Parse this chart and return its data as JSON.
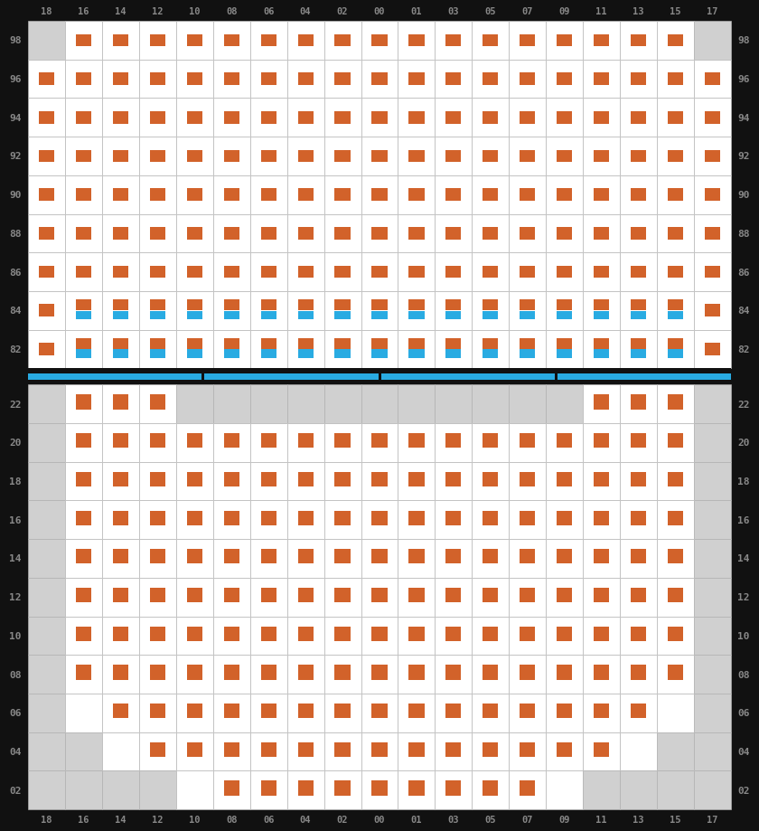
{
  "col_labels": [
    "18",
    "16",
    "14",
    "12",
    "10",
    "08",
    "06",
    "04",
    "02",
    "00",
    "01",
    "03",
    "05",
    "07",
    "09",
    "11",
    "13",
    "15",
    "17"
  ],
  "top_rows": [
    "98",
    "96",
    "94",
    "92",
    "90",
    "88",
    "86",
    "84",
    "82"
  ],
  "bot_rows": [
    "22",
    "20",
    "18",
    "16",
    "14",
    "12",
    "10",
    "08",
    "06",
    "04",
    "02"
  ],
  "orange": "#d2622a",
  "blue": "#29abe2",
  "bg_dark": "#111111",
  "bg_white": "#ffffff",
  "bg_gray": "#d0d0d0",
  "bg_light_gray": "#e8e8e8",
  "separator_blue": "#29abe2",
  "label_color": "#888888",
  "top_orange": {
    "98": [
      1,
      2,
      3,
      4,
      5,
      6,
      7,
      8,
      9,
      10,
      11,
      12,
      13,
      14,
      15,
      16,
      17
    ],
    "96": [
      0,
      1,
      2,
      3,
      4,
      5,
      6,
      7,
      8,
      9,
      10,
      11,
      12,
      13,
      14,
      15,
      16,
      17,
      18
    ],
    "94": [
      0,
      1,
      2,
      3,
      4,
      5,
      6,
      7,
      8,
      9,
      10,
      11,
      12,
      13,
      14,
      15,
      16,
      17,
      18
    ],
    "92": [
      0,
      1,
      2,
      3,
      4,
      5,
      6,
      7,
      8,
      9,
      10,
      11,
      12,
      13,
      14,
      15,
      16,
      17,
      18
    ],
    "90": [
      0,
      1,
      2,
      3,
      4,
      5,
      6,
      7,
      8,
      9,
      10,
      11,
      12,
      13,
      14,
      15,
      16,
      17,
      18
    ],
    "88": [
      0,
      1,
      2,
      3,
      4,
      5,
      6,
      7,
      8,
      9,
      10,
      11,
      12,
      13,
      14,
      15,
      16,
      17,
      18
    ],
    "86": [
      0,
      1,
      2,
      3,
      4,
      5,
      6,
      7,
      8,
      9,
      10,
      11,
      12,
      13,
      14,
      15,
      16,
      17,
      18
    ],
    "84": [
      0,
      1,
      2,
      3,
      4,
      5,
      6,
      7,
      8,
      9,
      10,
      11,
      12,
      13,
      14,
      15,
      16,
      17,
      18
    ],
    "82": [
      0,
      1,
      2,
      3,
      4,
      5,
      6,
      7,
      8,
      9,
      10,
      11,
      12,
      13,
      14,
      15,
      16,
      17,
      18
    ]
  },
  "top_blue": {
    "84": [
      1,
      2,
      3,
      4,
      5,
      6,
      7,
      8,
      9,
      10,
      11,
      12,
      13,
      14,
      15,
      16,
      17
    ],
    "82": [
      1,
      2,
      3,
      4,
      5,
      6,
      7,
      8,
      9,
      10,
      11,
      12,
      13,
      14,
      15,
      16,
      17
    ]
  },
  "top_gray_cells": {
    "98": [
      0,
      18
    ]
  },
  "bot_orange": {
    "22": [
      1,
      2,
      3,
      15,
      16,
      17
    ],
    "20": [
      1,
      2,
      3,
      4,
      5,
      6,
      7,
      8,
      9,
      10,
      11,
      12,
      13,
      14,
      15,
      16,
      17
    ],
    "18": [
      1,
      2,
      3,
      4,
      5,
      6,
      7,
      8,
      9,
      10,
      11,
      12,
      13,
      14,
      15,
      16,
      17
    ],
    "16": [
      1,
      2,
      3,
      4,
      5,
      6,
      7,
      8,
      9,
      10,
      11,
      12,
      13,
      14,
      15,
      16,
      17
    ],
    "14": [
      1,
      2,
      3,
      4,
      5,
      6,
      7,
      8,
      9,
      10,
      11,
      12,
      13,
      14,
      15,
      16,
      17
    ],
    "12": [
      1,
      2,
      3,
      4,
      5,
      6,
      7,
      8,
      9,
      10,
      11,
      12,
      13,
      14,
      15,
      16,
      17
    ],
    "10": [
      1,
      2,
      3,
      4,
      5,
      6,
      7,
      8,
      9,
      10,
      11,
      12,
      13,
      14,
      15,
      16,
      17
    ],
    "08": [
      1,
      2,
      3,
      4,
      5,
      6,
      7,
      8,
      9,
      10,
      11,
      12,
      13,
      14,
      15,
      16,
      17
    ],
    "06": [
      2,
      3,
      4,
      5,
      6,
      7,
      8,
      9,
      10,
      11,
      12,
      13,
      14,
      15,
      16
    ],
    "04": [
      3,
      4,
      5,
      6,
      7,
      8,
      9,
      10,
      11,
      12,
      13,
      14,
      15
    ],
    "02": [
      5,
      6,
      7,
      8,
      9,
      10,
      11,
      12,
      13
    ]
  },
  "bot_white_cells": {
    "22": [
      1,
      2,
      3,
      15,
      16,
      17
    ],
    "20": [
      1,
      2,
      3,
      4,
      5,
      6,
      7,
      8,
      9,
      10,
      11,
      12,
      13,
      14,
      15,
      16,
      17
    ],
    "18": [
      1,
      2,
      3,
      4,
      5,
      6,
      7,
      8,
      9,
      10,
      11,
      12,
      13,
      14,
      15,
      16,
      17
    ],
    "16": [
      1,
      2,
      3,
      4,
      5,
      6,
      7,
      8,
      9,
      10,
      11,
      12,
      13,
      14,
      15,
      16,
      17
    ],
    "14": [
      1,
      2,
      3,
      4,
      5,
      6,
      7,
      8,
      9,
      10,
      11,
      12,
      13,
      14,
      15,
      16,
      17
    ],
    "12": [
      1,
      2,
      3,
      4,
      5,
      6,
      7,
      8,
      9,
      10,
      11,
      12,
      13,
      14,
      15,
      16,
      17
    ],
    "10": [
      1,
      2,
      3,
      4,
      5,
      6,
      7,
      8,
      9,
      10,
      11,
      12,
      13,
      14,
      15,
      16,
      17
    ],
    "08": [
      1,
      2,
      3,
      4,
      5,
      6,
      7,
      8,
      9,
      10,
      11,
      12,
      13,
      14,
      15,
      16,
      17
    ],
    "06": [
      1,
      2,
      3,
      4,
      5,
      6,
      7,
      8,
      9,
      10,
      11,
      12,
      13,
      14,
      15,
      16,
      17
    ],
    "04": [
      2,
      3,
      4,
      5,
      6,
      7,
      8,
      9,
      10,
      11,
      12,
      13,
      14,
      15,
      16
    ],
    "02": [
      4,
      5,
      6,
      7,
      8,
      9,
      10,
      11,
      12,
      13,
      14
    ]
  }
}
